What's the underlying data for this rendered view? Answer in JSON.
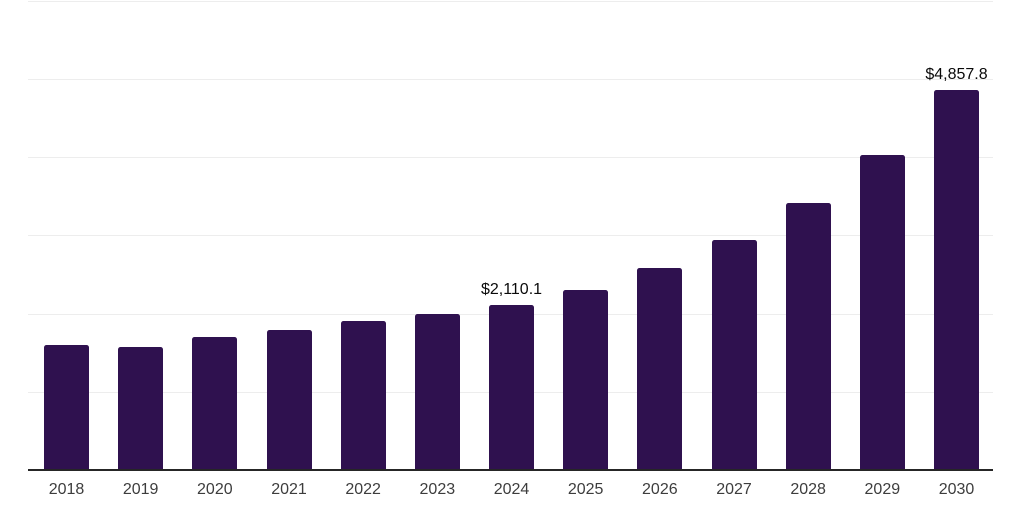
{
  "chart_data": {
    "type": "bar",
    "title": "",
    "xlabel": "",
    "ylabel": "",
    "categories": [
      "2018",
      "2019",
      "2020",
      "2021",
      "2022",
      "2023",
      "2024",
      "2025",
      "2026",
      "2027",
      "2028",
      "2029",
      "2030"
    ],
    "values": [
      1595,
      1570,
      1700,
      1790,
      1905,
      1990,
      2110.1,
      2300,
      2580,
      2940,
      3410,
      4030,
      4857.8
    ],
    "value_labels": [
      null,
      null,
      null,
      null,
      null,
      null,
      "$2,110.1",
      null,
      null,
      null,
      null,
      null,
      "$4,857.8"
    ],
    "ylim": [
      0,
      6000
    ],
    "gridline_step": 1000,
    "grid": "horizontal",
    "legend": "none",
    "colors": {
      "bar": "#2f114f",
      "axis": "#262626",
      "gridline": "#ededed",
      "tick_label": "#3d3d3d",
      "data_label": "#0a0a0a"
    }
  }
}
